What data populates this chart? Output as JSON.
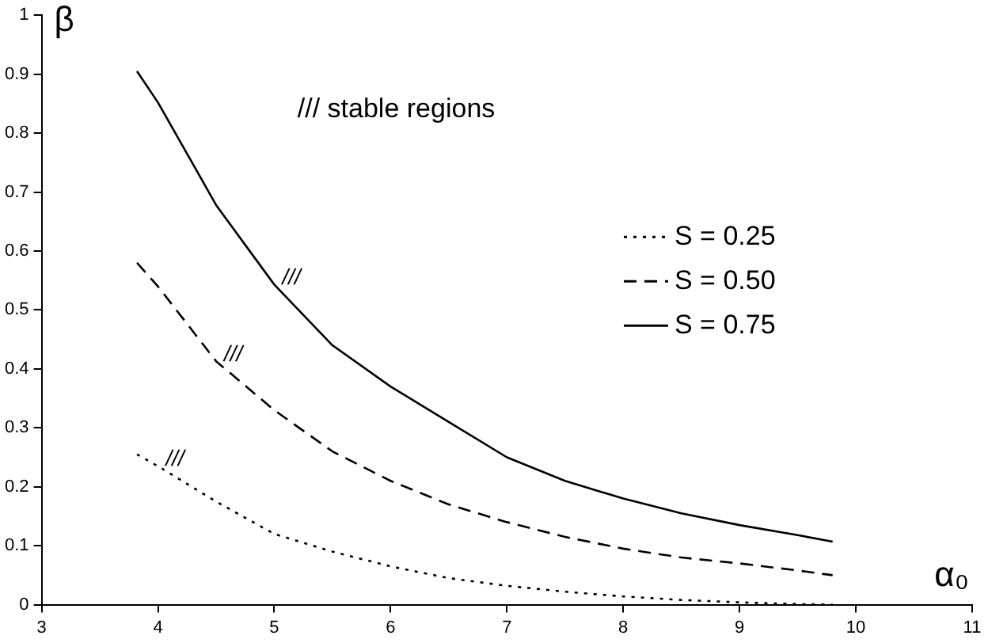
{
  "chart_data": {
    "type": "line",
    "xlabel": "α₀",
    "ylabel": "β",
    "xlim": [
      3,
      11
    ],
    "xticks": [
      3,
      4,
      5,
      6,
      7,
      8,
      9,
      10,
      11
    ],
    "ylim": [
      0,
      1
    ],
    "yticks": [
      0,
      0.1,
      0.2,
      0.3,
      0.4,
      0.5,
      0.6,
      0.7,
      0.8,
      0.9,
      1
    ],
    "grid": false,
    "legend": "right",
    "marker": "none",
    "x": [
      3.82,
      4,
      4.5,
      5,
      5.5,
      6,
      6.5,
      7,
      7.5,
      8,
      8.5,
      9,
      9.5,
      9.8
    ],
    "series": [
      {
        "name": "S = 0.25",
        "color": "#000000",
        "line_style": "dotted",
        "values": [
          0.255,
          0.235,
          0.175,
          0.12,
          0.09,
          0.065,
          0.045,
          0.032,
          0.022,
          0.014,
          0.008,
          0.004,
          0.001,
          0
        ]
      },
      {
        "name": "S = 0.50",
        "color": "#000000",
        "line_style": "dashed",
        "values": [
          0.58,
          0.54,
          0.413,
          0.33,
          0.26,
          0.21,
          0.17,
          0.14,
          0.115,
          0.095,
          0.08,
          0.07,
          0.058,
          0.05
        ]
      },
      {
        "name": "S = 0.75",
        "color": "#000000",
        "line_style": "solid",
        "values": [
          0.905,
          0.852,
          0.678,
          0.543,
          0.44,
          0.37,
          0.31,
          0.25,
          0.21,
          0.18,
          0.155,
          0.135,
          0.118,
          0.107
        ]
      }
    ],
    "annotations": [
      "/// stable regions",
      {
        "text": "///",
        "x": 5,
        "y": 0.543
      },
      {
        "text": "///",
        "x": 4.5,
        "y": 0.413
      },
      {
        "text": "///",
        "x": 4,
        "y": 0.235
      }
    ]
  }
}
